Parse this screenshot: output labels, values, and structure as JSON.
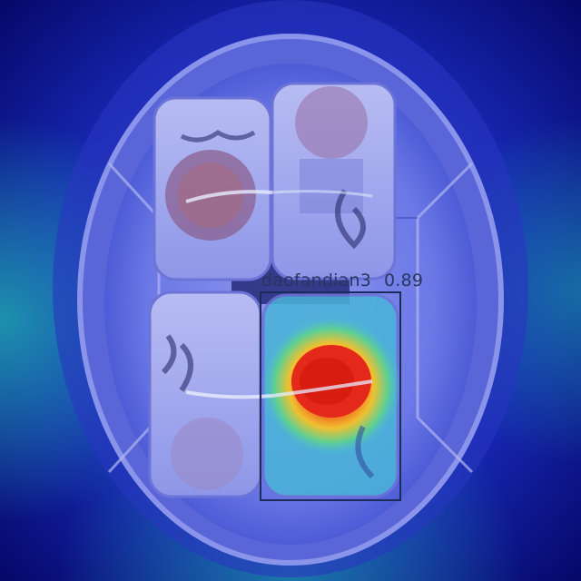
{
  "detection": {
    "class_name": "daofandian3",
    "score": "0.89",
    "box_color": "#1c2a5c"
  },
  "overlay": {
    "colormap": "jet",
    "hot_color": "#e02a10",
    "cool_color": "#1a2ad0"
  }
}
